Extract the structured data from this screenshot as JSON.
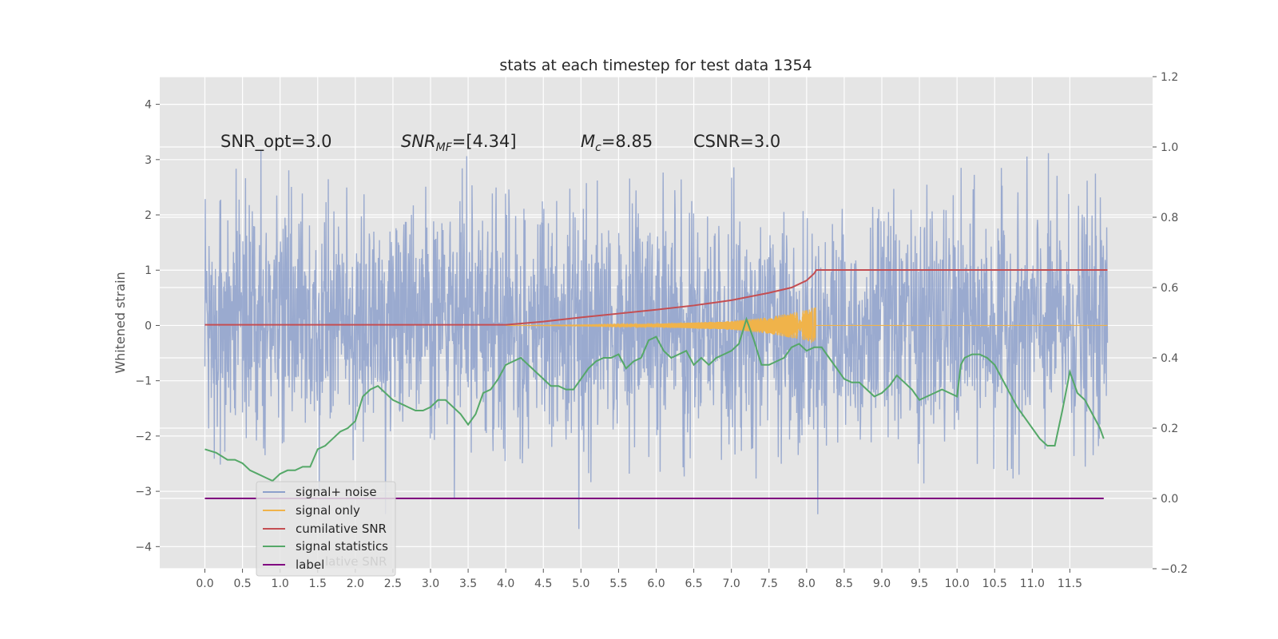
{
  "chart_data": {
    "type": "line",
    "title": "stats at each timestep for test data 1354",
    "ylabel": "Whitened strain",
    "xlim": [
      -0.6,
      12.6
    ],
    "ylim_left": [
      -4.4,
      4.5
    ],
    "ylim_right": [
      -0.2,
      1.2
    ],
    "grid": true,
    "x_ticks": [
      "0.0",
      "0.5",
      "1.0",
      "1.5",
      "2.0",
      "2.5",
      "3.0",
      "3.5",
      "4.0",
      "4.5",
      "5.0",
      "5.5",
      "6.0",
      "6.5",
      "7.0",
      "7.5",
      "8.0",
      "8.5",
      "9.0",
      "9.5",
      "10.0",
      "10.5",
      "11.0",
      "11.5"
    ],
    "y_ticks_left": [
      "4",
      "3",
      "2",
      "1",
      "0",
      "−1",
      "−2",
      "−3",
      "−4"
    ],
    "y_ticks_right": [
      "1.2",
      "1.0",
      "0.8",
      "0.6",
      "0.4",
      "0.2",
      "0.0",
      "−0.2"
    ],
    "annotations": {
      "snr_opt": "SNR_opt=3.0",
      "snr_mf_a": "SNR",
      "snr_mf_b": "MF",
      "snr_mf_c": "=[4.34]",
      "mc_a": "M",
      "mc_b": "c",
      "mc_c": "=8.85",
      "csnr": "CSNR=3.0"
    },
    "legend_position": "lower-left",
    "legend_overlap_text": "lative SNR",
    "series": [
      {
        "name": "signal+ noise",
        "axis": "left",
        "color": "#8da0cb",
        "x_range": [
          0.0,
          12.0
        ],
        "envelope": "gaussian noise, amplitude ~±3"
      },
      {
        "name": "signal only",
        "axis": "left",
        "color": "#f0b34a",
        "x": [
          4.0,
          5.0,
          6.0,
          7.0,
          7.5,
          8.0,
          8.12,
          8.13,
          12.0
        ],
        "amplitude": [
          0.0,
          0.01,
          0.03,
          0.08,
          0.15,
          0.28,
          0.35,
          0.0,
          0.0
        ]
      },
      {
        "name": "cumilative SNR",
        "axis": "right",
        "color": "#c44e52",
        "x": [
          0.0,
          4.0,
          4.5,
          5.0,
          5.5,
          6.0,
          6.5,
          7.0,
          7.5,
          7.8,
          8.0,
          8.1,
          8.13,
          12.0
        ],
        "y": [
          0.494,
          0.494,
          0.503,
          0.515,
          0.526,
          0.537,
          0.549,
          0.564,
          0.585,
          0.6,
          0.62,
          0.64,
          0.65,
          0.65
        ]
      },
      {
        "name": "signal statistics",
        "axis": "right",
        "color": "#55a868",
        "x": [
          0.0,
          0.15,
          0.3,
          0.4,
          0.5,
          0.6,
          0.7,
          0.8,
          0.9,
          1.0,
          1.1,
          1.2,
          1.3,
          1.4,
          1.5,
          1.6,
          1.7,
          1.8,
          1.9,
          2.0,
          2.1,
          2.2,
          2.3,
          2.4,
          2.5,
          2.6,
          2.7,
          2.8,
          2.9,
          3.0,
          3.1,
          3.2,
          3.3,
          3.4,
          3.5,
          3.6,
          3.7,
          3.8,
          3.9,
          4.0,
          4.1,
          4.2,
          4.3,
          4.4,
          4.5,
          4.6,
          4.7,
          4.8,
          4.9,
          5.0,
          5.1,
          5.2,
          5.3,
          5.4,
          5.5,
          5.6,
          5.7,
          5.8,
          5.9,
          6.0,
          6.1,
          6.2,
          6.3,
          6.4,
          6.5,
          6.6,
          6.7,
          6.8,
          6.9,
          7.0,
          7.1,
          7.2,
          7.3,
          7.4,
          7.5,
          7.6,
          7.7,
          7.8,
          7.9,
          8.0,
          8.1,
          8.2,
          8.3,
          8.4,
          8.5,
          8.6,
          8.7,
          8.8,
          8.9,
          9.0,
          9.1,
          9.2,
          9.3,
          9.4,
          9.5,
          9.6,
          9.7,
          9.8,
          9.9,
          10.0,
          10.05,
          10.1,
          10.2,
          10.3,
          10.4,
          10.5,
          10.6,
          10.7,
          10.8,
          10.9,
          11.0,
          11.1,
          11.2,
          11.3,
          11.4,
          11.5,
          11.6,
          11.7,
          11.8,
          11.9,
          11.95
        ],
        "y": [
          0.14,
          0.13,
          0.11,
          0.11,
          0.1,
          0.08,
          0.07,
          0.06,
          0.05,
          0.07,
          0.08,
          0.08,
          0.09,
          0.09,
          0.14,
          0.15,
          0.17,
          0.19,
          0.2,
          0.22,
          0.29,
          0.31,
          0.32,
          0.3,
          0.28,
          0.27,
          0.26,
          0.25,
          0.25,
          0.26,
          0.28,
          0.28,
          0.26,
          0.24,
          0.21,
          0.24,
          0.3,
          0.31,
          0.34,
          0.38,
          0.39,
          0.4,
          0.38,
          0.36,
          0.34,
          0.32,
          0.32,
          0.31,
          0.31,
          0.34,
          0.37,
          0.39,
          0.4,
          0.4,
          0.41,
          0.37,
          0.39,
          0.4,
          0.45,
          0.46,
          0.42,
          0.4,
          0.41,
          0.42,
          0.38,
          0.4,
          0.38,
          0.4,
          0.41,
          0.42,
          0.44,
          0.51,
          0.45,
          0.38,
          0.38,
          0.39,
          0.4,
          0.43,
          0.44,
          0.42,
          0.43,
          0.43,
          0.4,
          0.37,
          0.34,
          0.33,
          0.33,
          0.31,
          0.29,
          0.3,
          0.32,
          0.35,
          0.33,
          0.31,
          0.28,
          0.29,
          0.3,
          0.31,
          0.3,
          0.29,
          0.38,
          0.4,
          0.41,
          0.41,
          0.4,
          0.38,
          0.34,
          0.3,
          0.26,
          0.23,
          0.2,
          0.17,
          0.15,
          0.15,
          0.25,
          0.36,
          0.3,
          0.28,
          0.24,
          0.2,
          0.17
        ]
      },
      {
        "name": "label",
        "axis": "right",
        "color": "#800080",
        "x": [
          0.0,
          11.95
        ],
        "y": [
          0.0,
          0.0
        ]
      }
    ]
  }
}
